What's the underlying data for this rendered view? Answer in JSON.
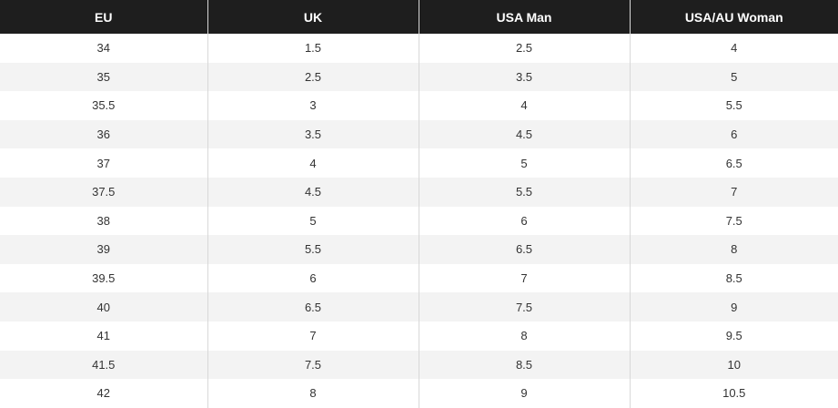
{
  "table": {
    "headers": [
      "EU",
      "UK",
      "USA Man",
      "USA/AU Woman"
    ],
    "rows": [
      [
        "34",
        "1.5",
        "2.5",
        "4"
      ],
      [
        "35",
        "2.5",
        "3.5",
        "5"
      ],
      [
        "35.5",
        "3",
        "4",
        "5.5"
      ],
      [
        "36",
        "3.5",
        "4.5",
        "6"
      ],
      [
        "37",
        "4",
        "5",
        "6.5"
      ],
      [
        "37.5",
        "4.5",
        "5.5",
        "7"
      ],
      [
        "38",
        "5",
        "6",
        "7.5"
      ],
      [
        "39",
        "5.5",
        "6.5",
        "8"
      ],
      [
        "39.5",
        "6",
        "7",
        "8.5"
      ],
      [
        "40",
        "6.5",
        "7.5",
        "9"
      ],
      [
        "41",
        "7",
        "8",
        "9.5"
      ],
      [
        "41.5",
        "7.5",
        "8.5",
        "10"
      ],
      [
        "42",
        "8",
        "9",
        "10.5"
      ]
    ]
  },
  "colors": {
    "header_background": "#1e1e1e",
    "header_text": "#ffffff",
    "row_alt_background": "#f3f3f3",
    "row_background": "#ffffff",
    "cell_text": "#333333",
    "divider": "#d8d8d8"
  }
}
